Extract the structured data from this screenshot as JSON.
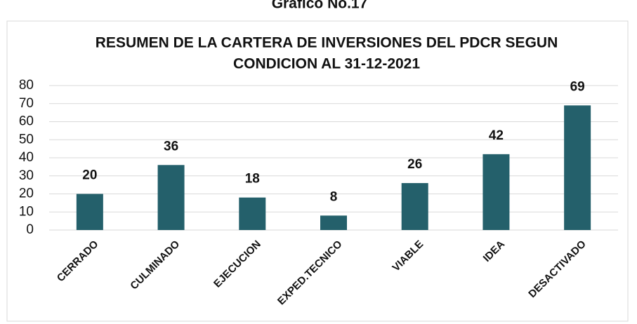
{
  "header": "Gráfico No.17",
  "chart_data": {
    "type": "bar",
    "title": [
      "RESUMEN DE LA CARTERA DE INVERSIONES DEL PDCR SEGUN",
      "CONDICION AL 31-12-2021"
    ],
    "categories": [
      "CERRADO",
      "CULMINADO",
      "EJECUCION",
      "EXPED.TECNICO",
      "VIABLE",
      "IDEA",
      "DESACTIVADO"
    ],
    "values": [
      20,
      36,
      18,
      8,
      26,
      42,
      69
    ],
    "color": "#24606b",
    "ylim": [
      0,
      80
    ],
    "yticks": [
      0,
      10,
      20,
      30,
      40,
      50,
      60,
      70,
      80
    ],
    "grid": true
  }
}
